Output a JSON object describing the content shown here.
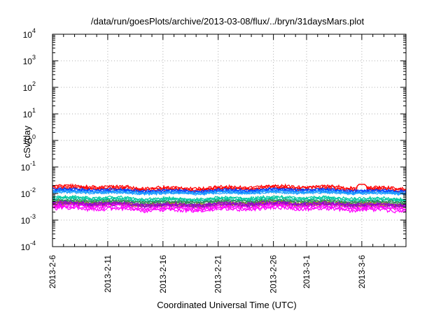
{
  "chart_data": {
    "type": "line",
    "title": "/data/run/goesPlots/archive/2013-03-08/flux/../bryn/31daysMars.plot",
    "xlabel": "Coordinated Universal Time (UTC)",
    "ylabel": "cSv/day",
    "yscale": "log",
    "ylim": [
      0.0001,
      10000
    ],
    "y_ticks": [
      {
        "base": "10",
        "exp": "-4"
      },
      {
        "base": "10",
        "exp": "-3"
      },
      {
        "base": "10",
        "exp": "-2"
      },
      {
        "base": "10",
        "exp": "-1"
      },
      {
        "base": "10",
        "exp": "0"
      },
      {
        "base": "10",
        "exp": "1"
      },
      {
        "base": "10",
        "exp": "2"
      },
      {
        "base": "10",
        "exp": "3"
      },
      {
        "base": "10",
        "exp": "4"
      }
    ],
    "xlim": [
      "2013-02-06",
      "2013-03-10"
    ],
    "x_ticks": [
      "2013-2-6",
      "2013-2-11",
      "2013-2-16",
      "2013-2-21",
      "2013-2-26",
      "2013-3-1",
      "2013-3-6"
    ],
    "x_tick_days": [
      0,
      5,
      10,
      15,
      20,
      23,
      28
    ],
    "grid": true,
    "series": [
      {
        "color": "#ff0000",
        "band": [
          0.012,
          0.021
        ],
        "note_peaks": [
          {
            "x": "2013-03-06",
            "y": 0.028
          }
        ]
      },
      {
        "color": "#0044ff",
        "band": [
          0.01,
          0.016
        ]
      },
      {
        "color": "#1fa0ff",
        "band": [
          0.009,
          0.013
        ]
      },
      {
        "color": "#00c8a0",
        "band": [
          0.005,
          0.008
        ]
      },
      {
        "color": "#2e8b57",
        "band": [
          0.004,
          0.006
        ]
      },
      {
        "color": "#b8860b",
        "band": [
          0.003,
          0.005
        ]
      },
      {
        "color": "#9400d3",
        "band": [
          0.003,
          0.005
        ]
      },
      {
        "color": "#ff00ff",
        "band": [
          0.002,
          0.004
        ]
      }
    ]
  }
}
